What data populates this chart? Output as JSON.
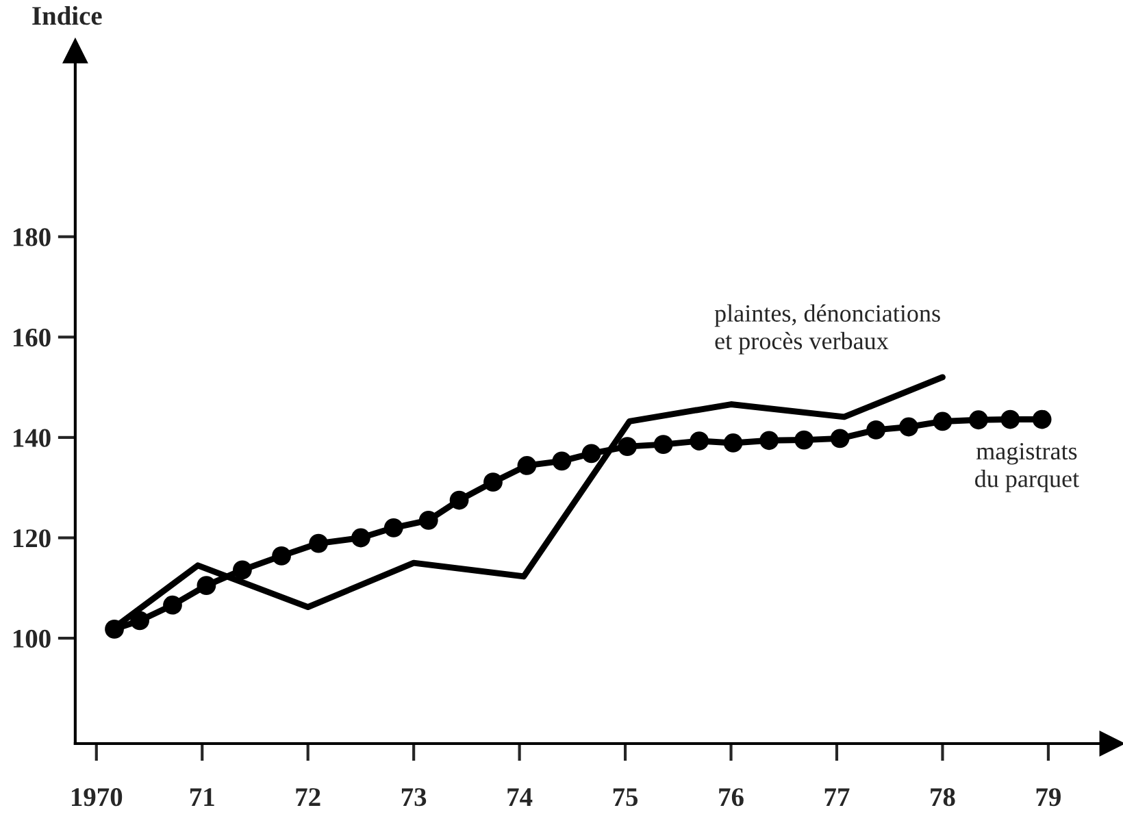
{
  "chart_data": {
    "type": "line",
    "ylabel": "Indice",
    "xlim": [
      1969.8,
      1979.6
    ],
    "ylim": [
      79,
      217
    ],
    "xticks": [
      {
        "value": 1970,
        "label": "1970"
      },
      {
        "value": 1971,
        "label": "71"
      },
      {
        "value": 1972,
        "label": "72"
      },
      {
        "value": 1973,
        "label": "73"
      },
      {
        "value": 1974,
        "label": "74"
      },
      {
        "value": 1975,
        "label": "75"
      },
      {
        "value": 1976,
        "label": "76"
      },
      {
        "value": 1977,
        "label": "77"
      },
      {
        "value": 1978,
        "label": "78"
      },
      {
        "value": 1979,
        "label": "79"
      }
    ],
    "yticks": [
      100,
      120,
      140,
      160,
      180
    ],
    "grid": false,
    "legend": false,
    "line_style": "solid",
    "series": [
      {
        "name": "plaintes, dénonciations\net procès verbaux",
        "color": "#000000",
        "marker": "none",
        "x": [
          1970.15,
          1970.96,
          1972.0,
          1973.0,
          1974.04,
          1975.04,
          1976.0,
          1977.07,
          1978.0
        ],
        "values": [
          101.8,
          114.5,
          106.2,
          115,
          112.3,
          143.2,
          146.6,
          144.1,
          152
        ]
      },
      {
        "name": "magistrats\ndu parquet",
        "color": "#000000",
        "marker": "circle",
        "x": [
          1970.17,
          1970.41,
          1970.72,
          1971.04,
          1971.38,
          1971.75,
          1972.1,
          1972.5,
          1972.81,
          1973.14,
          1973.43,
          1973.75,
          1974.07,
          1974.4,
          1974.68,
          1975.02,
          1975.36,
          1975.7,
          1976.02,
          1976.36,
          1976.69,
          1977.03,
          1977.37,
          1977.68,
          1978.0,
          1978.34,
          1978.64,
          1978.94
        ],
        "values": [
          101.8,
          103.5,
          106.6,
          110.5,
          113.6,
          116.4,
          118.9,
          120,
          122,
          123.5,
          127.5,
          131.1,
          134.4,
          135.3,
          136.8,
          138.2,
          138.6,
          139.3,
          138.9,
          139.4,
          139.5,
          139.8,
          141.5,
          142.1,
          143.2,
          143.5,
          143.6,
          143.6
        ]
      }
    ]
  }
}
